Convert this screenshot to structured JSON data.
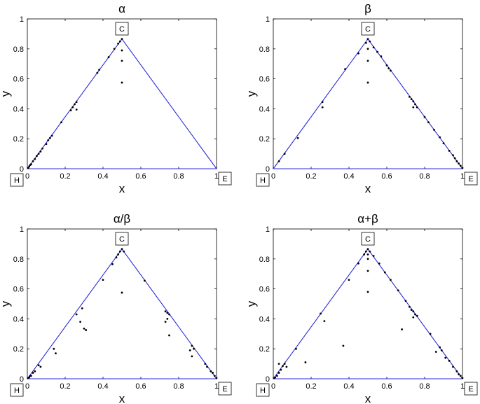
{
  "chart_data": [
    {
      "type": "scatter",
      "title": "α",
      "xlabel": "x",
      "ylabel": "y",
      "xlim": [
        0,
        1
      ],
      "ylim": [
        0,
        1
      ],
      "xticks": [
        "0",
        "0.2",
        "0.4",
        "0.6",
        "0.8",
        "1"
      ],
      "yticks": [
        "0",
        "0.2",
        "0.4",
        "0.6",
        "0.8",
        "1"
      ],
      "grid": false,
      "triangle": [
        [
          0,
          0
        ],
        [
          0.5,
          0.866
        ],
        [
          1,
          0
        ]
      ],
      "triangle_color": "#2b2bd9",
      "vertex_labels": [
        "H",
        "C",
        "E"
      ],
      "points": [
        [
          0.005,
          0.005
        ],
        [
          0.01,
          0.015
        ],
        [
          0.015,
          0.025
        ],
        [
          0.02,
          0.03
        ],
        [
          0.03,
          0.05
        ],
        [
          0.04,
          0.065
        ],
        [
          0.05,
          0.085
        ],
        [
          0.06,
          0.1
        ],
        [
          0.07,
          0.115
        ],
        [
          0.08,
          0.135
        ],
        [
          0.1,
          0.165
        ],
        [
          0.11,
          0.19
        ],
        [
          0.12,
          0.205
        ],
        [
          0.13,
          0.22
        ],
        [
          0.18,
          0.31
        ],
        [
          0.23,
          0.39
        ],
        [
          0.24,
          0.41
        ],
        [
          0.25,
          0.43
        ],
        [
          0.26,
          0.445
        ],
        [
          0.26,
          0.395
        ],
        [
          0.37,
          0.64
        ],
        [
          0.38,
          0.66
        ],
        [
          0.43,
          0.745
        ],
        [
          0.46,
          0.8
        ],
        [
          0.48,
          0.835
        ],
        [
          0.49,
          0.85
        ],
        [
          0.5,
          0.866
        ],
        [
          0.5,
          0.79
        ],
        [
          0.5,
          0.72
        ],
        [
          0.5,
          0.575
        ]
      ]
    },
    {
      "type": "scatter",
      "title": "β",
      "xlabel": "x",
      "ylabel": "y",
      "xlim": [
        0,
        1
      ],
      "ylim": [
        0,
        1
      ],
      "xticks": [
        "0",
        "0.2",
        "0.4",
        "0.6",
        "0.8",
        "1"
      ],
      "yticks": [
        "0",
        "0.2",
        "0.4",
        "0.6",
        "0.8",
        "1"
      ],
      "grid": false,
      "triangle": [
        [
          0,
          0
        ],
        [
          0.5,
          0.866
        ],
        [
          1,
          0
        ]
      ],
      "triangle_color": "#2b2bd9",
      "vertex_labels": [
        "H",
        "C",
        "E"
      ],
      "points": [
        [
          0.03,
          0.05
        ],
        [
          0.06,
          0.1
        ],
        [
          0.13,
          0.205
        ],
        [
          0.26,
          0.41
        ],
        [
          0.26,
          0.445
        ],
        [
          0.38,
          0.665
        ],
        [
          0.45,
          0.77
        ],
        [
          0.49,
          0.84
        ],
        [
          0.5,
          0.866
        ],
        [
          0.5,
          0.8
        ],
        [
          0.5,
          0.72
        ],
        [
          0.5,
          0.575
        ],
        [
          0.51,
          0.85
        ],
        [
          0.53,
          0.81
        ],
        [
          0.55,
          0.78
        ],
        [
          0.57,
          0.75
        ],
        [
          0.6,
          0.69
        ],
        [
          0.61,
          0.67
        ],
        [
          0.62,
          0.655
        ],
        [
          0.72,
          0.48
        ],
        [
          0.73,
          0.465
        ],
        [
          0.74,
          0.45
        ],
        [
          0.75,
          0.43
        ],
        [
          0.76,
          0.41
        ],
        [
          0.74,
          0.41
        ],
        [
          0.8,
          0.345
        ],
        [
          0.82,
          0.31
        ],
        [
          0.85,
          0.26
        ],
        [
          0.88,
          0.21
        ],
        [
          0.9,
          0.17
        ],
        [
          0.93,
          0.12
        ],
        [
          0.95,
          0.09
        ],
        [
          0.96,
          0.07
        ],
        [
          0.97,
          0.05
        ],
        [
          0.98,
          0.035
        ],
        [
          0.99,
          0.02
        ],
        [
          1.0,
          0.005
        ]
      ]
    },
    {
      "type": "scatter",
      "title": "α/β",
      "xlabel": "x",
      "ylabel": "y",
      "xlim": [
        0,
        1
      ],
      "ylim": [
        0,
        1
      ],
      "xticks": [
        "0",
        "0.2",
        "0.4",
        "0.6",
        "0.8",
        "1"
      ],
      "yticks": [
        "0",
        "0.2",
        "0.4",
        "0.6",
        "0.8",
        "1"
      ],
      "grid": false,
      "triangle": [
        [
          0,
          0
        ],
        [
          0.5,
          0.866
        ],
        [
          1,
          0
        ]
      ],
      "triangle_color": "#2b2bd9",
      "vertex_labels": [
        "H",
        "C",
        "E"
      ],
      "points": [
        [
          0.005,
          0.005
        ],
        [
          0.01,
          0.01
        ],
        [
          0.015,
          0.02
        ],
        [
          0.02,
          0.02
        ],
        [
          0.03,
          0.04
        ],
        [
          0.04,
          0.05
        ],
        [
          0.06,
          0.09
        ],
        [
          0.07,
          0.08
        ],
        [
          0.14,
          0.2
        ],
        [
          0.15,
          0.17
        ],
        [
          0.26,
          0.43
        ],
        [
          0.28,
          0.38
        ],
        [
          0.29,
          0.47
        ],
        [
          0.3,
          0.335
        ],
        [
          0.31,
          0.325
        ],
        [
          0.4,
          0.66
        ],
        [
          0.45,
          0.765
        ],
        [
          0.47,
          0.81
        ],
        [
          0.48,
          0.83
        ],
        [
          0.49,
          0.85
        ],
        [
          0.5,
          0.866
        ],
        [
          0.51,
          0.85
        ],
        [
          0.5,
          0.575
        ],
        [
          0.62,
          0.655
        ],
        [
          0.73,
          0.45
        ],
        [
          0.74,
          0.44
        ],
        [
          0.75,
          0.43
        ],
        [
          0.73,
          0.38
        ],
        [
          0.74,
          0.4
        ],
        [
          0.75,
          0.29
        ],
        [
          0.87,
          0.22
        ],
        [
          0.88,
          0.2
        ],
        [
          0.86,
          0.19
        ],
        [
          0.87,
          0.15
        ],
        [
          0.94,
          0.1
        ],
        [
          0.95,
          0.08
        ],
        [
          0.97,
          0.05
        ],
        [
          0.98,
          0.04
        ],
        [
          0.99,
          0.02
        ],
        [
          1.0,
          0.005
        ]
      ]
    },
    {
      "type": "scatter",
      "title": "α+β",
      "xlabel": "x",
      "ylabel": "y",
      "xlim": [
        0,
        1
      ],
      "ylim": [
        0,
        1
      ],
      "xticks": [
        "0",
        "0.2",
        "0.4",
        "0.6",
        "0.8",
        "1"
      ],
      "yticks": [
        "0",
        "0.2",
        "0.4",
        "0.6",
        "0.8",
        "1"
      ],
      "grid": false,
      "triangle": [
        [
          0,
          0
        ],
        [
          0.5,
          0.866
        ],
        [
          1,
          0
        ]
      ],
      "triangle_color": "#2b2bd9",
      "vertex_labels": [
        "H",
        "C",
        "E"
      ],
      "points": [
        [
          0.005,
          0.005
        ],
        [
          0.01,
          0.01
        ],
        [
          0.02,
          0.02
        ],
        [
          0.03,
          0.04
        ],
        [
          0.04,
          0.06
        ],
        [
          0.05,
          0.085
        ],
        [
          0.06,
          0.1
        ],
        [
          0.07,
          0.08
        ],
        [
          0.03,
          0.1
        ],
        [
          0.12,
          0.2
        ],
        [
          0.17,
          0.11
        ],
        [
          0.25,
          0.435
        ],
        [
          0.27,
          0.385
        ],
        [
          0.37,
          0.22
        ],
        [
          0.4,
          0.66
        ],
        [
          0.45,
          0.77
        ],
        [
          0.48,
          0.83
        ],
        [
          0.49,
          0.85
        ],
        [
          0.5,
          0.866
        ],
        [
          0.5,
          0.83
        ],
        [
          0.5,
          0.8
        ],
        [
          0.5,
          0.72
        ],
        [
          0.5,
          0.58
        ],
        [
          0.51,
          0.85
        ],
        [
          0.53,
          0.82
        ],
        [
          0.56,
          0.77
        ],
        [
          0.59,
          0.71
        ],
        [
          0.62,
          0.66
        ],
        [
          0.66,
          0.59
        ],
        [
          0.68,
          0.33
        ],
        [
          0.7,
          0.52
        ],
        [
          0.72,
          0.48
        ],
        [
          0.73,
          0.46
        ],
        [
          0.74,
          0.45
        ],
        [
          0.75,
          0.43
        ],
        [
          0.76,
          0.42
        ],
        [
          0.74,
          0.41
        ],
        [
          0.83,
          0.3
        ],
        [
          0.86,
          0.18
        ],
        [
          0.88,
          0.21
        ],
        [
          0.89,
          0.19
        ],
        [
          0.91,
          0.14
        ],
        [
          0.93,
          0.12
        ],
        [
          0.95,
          0.08
        ],
        [
          0.97,
          0.05
        ],
        [
          0.98,
          0.03
        ],
        [
          0.99,
          0.02
        ],
        [
          1.0,
          0.005
        ]
      ]
    }
  ]
}
